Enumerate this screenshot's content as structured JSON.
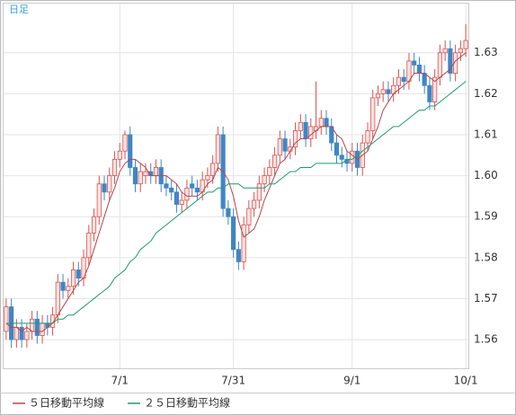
{
  "chart_data": {
    "type": "candlestick",
    "title": "日足",
    "categories": [
      null,
      null,
      null,
      null,
      null,
      null,
      null,
      null,
      null,
      null,
      null,
      null,
      null,
      null,
      null,
      null,
      null,
      null,
      null,
      null,
      null,
      null,
      "7/1",
      null,
      null,
      null,
      null,
      null,
      null,
      null,
      null,
      null,
      null,
      null,
      null,
      null,
      null,
      null,
      null,
      null,
      null,
      null,
      null,
      null,
      "7/31",
      null,
      null,
      null,
      null,
      null,
      null,
      null,
      null,
      null,
      null,
      null,
      null,
      null,
      null,
      null,
      null,
      null,
      null,
      null,
      null,
      null,
      null,
      "9/1",
      null,
      null,
      null,
      null,
      null,
      null,
      null,
      null,
      null,
      null,
      null,
      null,
      null,
      null,
      null,
      null,
      null,
      null,
      null,
      null,
      null,
      "10/1"
    ],
    "open": [
      1.562,
      1.568,
      1.56,
      1.563,
      1.56,
      1.562,
      1.565,
      1.561,
      1.564,
      1.563,
      1.566,
      1.574,
      1.572,
      1.573,
      1.577,
      1.575,
      1.58,
      1.586,
      1.59,
      1.598,
      1.596,
      1.6,
      1.604,
      1.606,
      1.61,
      1.602,
      1.598,
      1.6,
      1.601,
      1.6,
      1.602,
      1.598,
      1.597,
      1.596,
      1.593,
      1.594,
      1.598,
      1.597,
      1.596,
      1.599,
      1.6,
      1.603,
      1.61,
      1.592,
      1.59,
      1.582,
      1.579,
      1.588,
      1.592,
      1.594,
      1.598,
      1.6,
      1.602,
      1.605,
      1.609,
      1.606,
      1.607,
      1.611,
      1.613,
      1.609,
      1.611,
      1.612,
      1.614,
      1.612,
      1.608,
      1.605,
      1.604,
      1.603,
      1.606,
      1.602,
      1.608,
      1.611,
      1.619,
      1.62,
      1.621,
      1.62,
      1.622,
      1.624,
      1.623,
      1.628,
      1.627,
      1.625,
      1.622,
      1.618,
      1.624,
      1.63,
      1.631,
      1.625,
      1.63,
      1.631
    ],
    "high": [
      1.57,
      1.57,
      1.565,
      1.565,
      1.564,
      1.567,
      1.567,
      1.566,
      1.566,
      1.568,
      1.576,
      1.576,
      1.575,
      1.579,
      1.579,
      1.582,
      1.588,
      1.592,
      1.6,
      1.6,
      1.602,
      1.606,
      1.608,
      1.611,
      1.612,
      1.604,
      1.603,
      1.603,
      1.603,
      1.604,
      1.604,
      1.6,
      1.599,
      1.598,
      1.596,
      1.599,
      1.6,
      1.599,
      1.601,
      1.602,
      1.605,
      1.612,
      1.612,
      1.594,
      1.592,
      1.584,
      1.59,
      1.594,
      1.596,
      1.6,
      1.602,
      1.604,
      1.607,
      1.611,
      1.611,
      1.609,
      1.613,
      1.615,
      1.615,
      1.614,
      1.623,
      1.616,
      1.616,
      1.614,
      1.61,
      1.607,
      1.606,
      1.608,
      1.608,
      1.61,
      1.613,
      1.621,
      1.622,
      1.623,
      1.623,
      1.624,
      1.626,
      1.626,
      1.63,
      1.63,
      1.629,
      1.627,
      1.624,
      1.626,
      1.632,
      1.633,
      1.633,
      1.632,
      1.633,
      1.637
    ],
    "low": [
      1.56,
      1.558,
      1.558,
      1.558,
      1.558,
      1.56,
      1.559,
      1.559,
      1.561,
      1.561,
      1.564,
      1.57,
      1.57,
      1.571,
      1.573,
      1.573,
      1.578,
      1.584,
      1.588,
      1.594,
      1.594,
      1.598,
      1.602,
      1.604,
      1.6,
      1.596,
      1.596,
      1.598,
      1.598,
      1.598,
      1.596,
      1.595,
      1.594,
      1.591,
      1.591,
      1.592,
      1.595,
      1.594,
      1.594,
      1.597,
      1.598,
      1.601,
      1.59,
      1.588,
      1.58,
      1.577,
      1.577,
      1.586,
      1.59,
      1.592,
      1.596,
      1.598,
      1.6,
      1.603,
      1.604,
      1.604,
      1.605,
      1.609,
      1.607,
      1.607,
      1.609,
      1.61,
      1.61,
      1.606,
      1.603,
      1.602,
      1.601,
      1.601,
      1.6,
      1.6,
      1.606,
      1.609,
      1.617,
      1.618,
      1.618,
      1.618,
      1.62,
      1.621,
      1.621,
      1.625,
      1.623,
      1.62,
      1.616,
      1.616,
      1.622,
      1.628,
      1.623,
      1.623,
      1.628,
      1.629
    ],
    "close": [
      1.568,
      1.56,
      1.563,
      1.56,
      1.562,
      1.565,
      1.561,
      1.564,
      1.563,
      1.566,
      1.574,
      1.572,
      1.573,
      1.577,
      1.575,
      1.58,
      1.586,
      1.59,
      1.598,
      1.596,
      1.6,
      1.604,
      1.606,
      1.61,
      1.602,
      1.598,
      1.601,
      1.601,
      1.6,
      1.602,
      1.598,
      1.597,
      1.596,
      1.593,
      1.594,
      1.597,
      1.597,
      1.596,
      1.599,
      1.6,
      1.603,
      1.61,
      1.592,
      1.59,
      1.582,
      1.579,
      1.588,
      1.592,
      1.594,
      1.598,
      1.6,
      1.602,
      1.605,
      1.609,
      1.606,
      1.607,
      1.611,
      1.613,
      1.609,
      1.612,
      1.612,
      1.614,
      1.612,
      1.608,
      1.605,
      1.604,
      1.603,
      1.606,
      1.602,
      1.608,
      1.611,
      1.619,
      1.62,
      1.621,
      1.62,
      1.622,
      1.624,
      1.623,
      1.628,
      1.627,
      1.625,
      1.622,
      1.618,
      1.624,
      1.63,
      1.631,
      1.625,
      1.63,
      1.631,
      1.633
    ],
    "up_color": "#d9534f",
    "down_color": "#3f86c6",
    "series": [
      {
        "name": "５日移動平均線",
        "color": "#b5474b",
        "values": [
          1.564,
          1.563,
          1.563,
          1.562,
          1.563,
          1.562,
          1.562,
          1.562,
          1.563,
          1.564,
          1.566,
          1.568,
          1.57,
          1.572,
          1.574,
          1.575,
          1.578,
          1.582,
          1.586,
          1.59,
          1.594,
          1.597,
          1.601,
          1.603,
          1.604,
          1.604,
          1.603,
          1.602,
          1.6,
          1.6,
          1.6,
          1.6,
          1.599,
          1.598,
          1.596,
          1.595,
          1.595,
          1.595,
          1.596,
          1.598,
          1.599,
          1.602,
          1.601,
          1.599,
          1.595,
          1.589,
          1.585,
          1.586,
          1.587,
          1.59,
          1.594,
          1.597,
          1.6,
          1.603,
          1.604,
          1.606,
          1.608,
          1.609,
          1.609,
          1.61,
          1.611,
          1.612,
          1.612,
          1.612,
          1.61,
          1.609,
          1.606,
          1.605,
          1.604,
          1.605,
          1.606,
          1.609,
          1.612,
          1.616,
          1.618,
          1.62,
          1.621,
          1.622,
          1.623,
          1.625,
          1.625,
          1.625,
          1.624,
          1.623,
          1.624,
          1.625,
          1.626,
          1.628,
          1.629,
          1.63
        ]
      },
      {
        "name": "２５日移動平均線",
        "color": "#1f9a72",
        "values": [
          1.564,
          1.564,
          1.564,
          1.564,
          1.564,
          1.564,
          1.564,
          1.564,
          1.564,
          1.564,
          1.565,
          1.565,
          1.566,
          1.566,
          1.567,
          1.568,
          1.569,
          1.57,
          1.571,
          1.572,
          1.573,
          1.575,
          1.576,
          1.577,
          1.579,
          1.58,
          1.582,
          1.583,
          1.584,
          1.586,
          1.587,
          1.588,
          1.589,
          1.59,
          1.591,
          1.592,
          1.593,
          1.594,
          1.595,
          1.596,
          1.596,
          1.597,
          1.597,
          1.598,
          1.598,
          1.598,
          1.597,
          1.597,
          1.597,
          1.597,
          1.597,
          1.598,
          1.598,
          1.599,
          1.6,
          1.601,
          1.601,
          1.602,
          1.602,
          1.602,
          1.603,
          1.603,
          1.603,
          1.603,
          1.603,
          1.603,
          1.604,
          1.604,
          1.605,
          1.606,
          1.607,
          1.608,
          1.609,
          1.61,
          1.611,
          1.612,
          1.612,
          1.613,
          1.614,
          1.615,
          1.616,
          1.616,
          1.617,
          1.617,
          1.618,
          1.619,
          1.62,
          1.621,
          1.622,
          1.623
        ]
      }
    ],
    "ylim": [
      1.553,
      1.642
    ],
    "yticks": [
      1.56,
      1.57,
      1.58,
      1.59,
      {
        "value": 1.6,
        "label": "1.60"
      },
      1.61,
      1.62,
      1.63
    ],
    "grid": true
  }
}
